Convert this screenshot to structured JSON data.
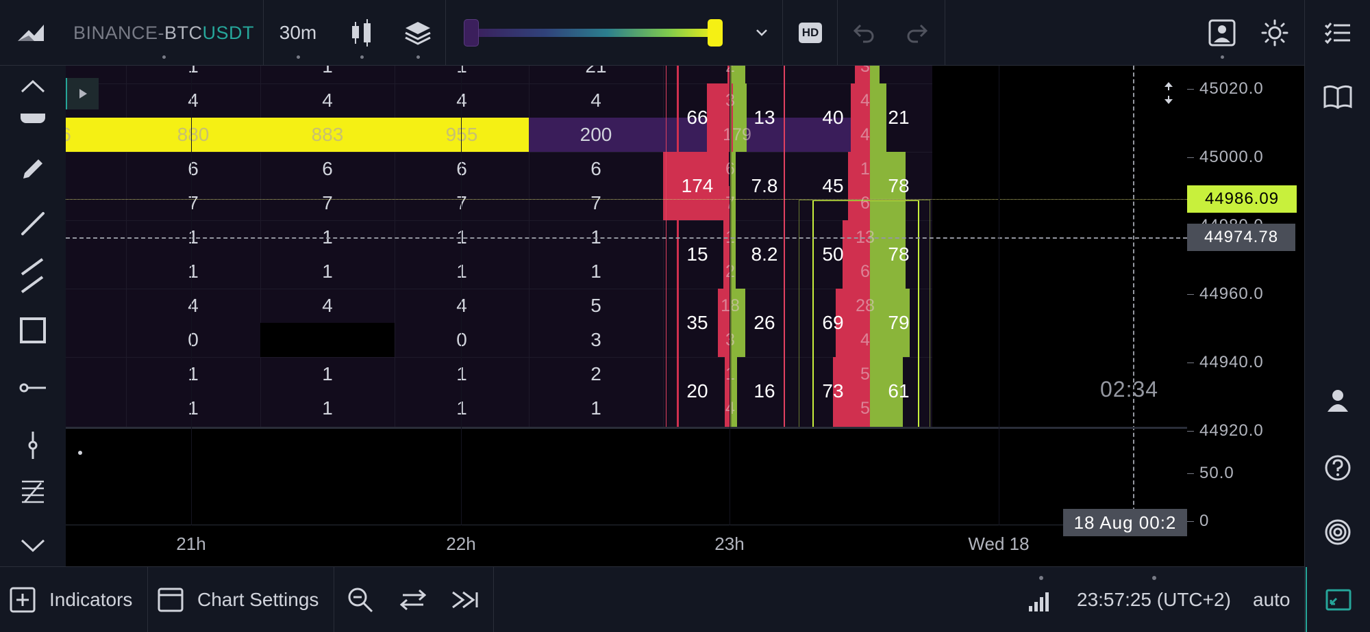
{
  "toolbar": {
    "symbol_exchange": "BINANCE-",
    "symbol_base": "BTC",
    "symbol_quote": "USDT",
    "interval": "30m",
    "hd_label": "HD",
    "color_range_low": 0,
    "color_range_high": 1
  },
  "heatmap": {
    "columns": [
      [
        "1",
        "4",
        "880",
        "6",
        "7",
        "1",
        "1",
        "4",
        "0",
        "1",
        "1"
      ],
      [
        "1",
        "4",
        "883",
        "6",
        "7",
        "1",
        "1",
        "4",
        "",
        "1",
        "1"
      ],
      [
        "1",
        "4",
        "955",
        "6",
        "7",
        "1",
        "1",
        "4",
        "0",
        "1",
        "1"
      ],
      [
        "21",
        "4",
        "200",
        "6",
        "7",
        "1",
        "1",
        "5",
        "3",
        "2",
        "1"
      ]
    ],
    "first_partial_col_value": "6",
    "highlight_row_index": 2
  },
  "footprint": {
    "candle1": {
      "rows": [
        {
          "bid": "66",
          "ask": "13"
        },
        {
          "bid": "174",
          "ask": "7.8"
        },
        {
          "bid": "15",
          "ask": "8.2"
        },
        {
          "bid": "35",
          "ask": "26"
        },
        {
          "bid": "20",
          "ask": "16"
        }
      ],
      "inner": [
        "2",
        "3",
        "179",
        "6",
        "7",
        "1",
        "2",
        "18",
        "3",
        "1",
        "4"
      ]
    },
    "candle2": {
      "rows": [
        {
          "bid": "40",
          "ask": "21"
        },
        {
          "bid": "45",
          "ask": "78"
        },
        {
          "bid": "50",
          "ask": "78"
        },
        {
          "bid": "69",
          "ask": "79"
        },
        {
          "bid": "73",
          "ask": "61"
        }
      ],
      "inner": [
        "3",
        "4",
        "4",
        "1",
        "6",
        "13",
        "6",
        "28",
        "4",
        "5",
        "5"
      ]
    }
  },
  "price_axis": {
    "ticks": [
      "45020.0",
      "45000.0",
      "44980.0",
      "44960.0",
      "44940.0",
      "44920.0"
    ],
    "current_price": "44986.09",
    "crosshair_price": "44974.78",
    "lower_ticks": [
      "50.0",
      "0"
    ]
  },
  "time_axis": {
    "ticks": [
      "21h",
      "22h",
      "23h",
      "Wed 18"
    ],
    "crosshair_time": "18 Aug 00:2"
  },
  "countdown": "02:34",
  "bottombar": {
    "indicators_label": "Indicators",
    "chart_settings_label": "Chart Settings",
    "clock": "23:57:25 (UTC+2)",
    "scale_mode": "auto"
  },
  "colors": {
    "bg": "#131722",
    "accent_green": "#26a69a",
    "heat_yellow": "#f5f014",
    "bid_red": "#d0304f",
    "ask_green": "#8ab53a",
    "price_label": "#c8f03c"
  }
}
